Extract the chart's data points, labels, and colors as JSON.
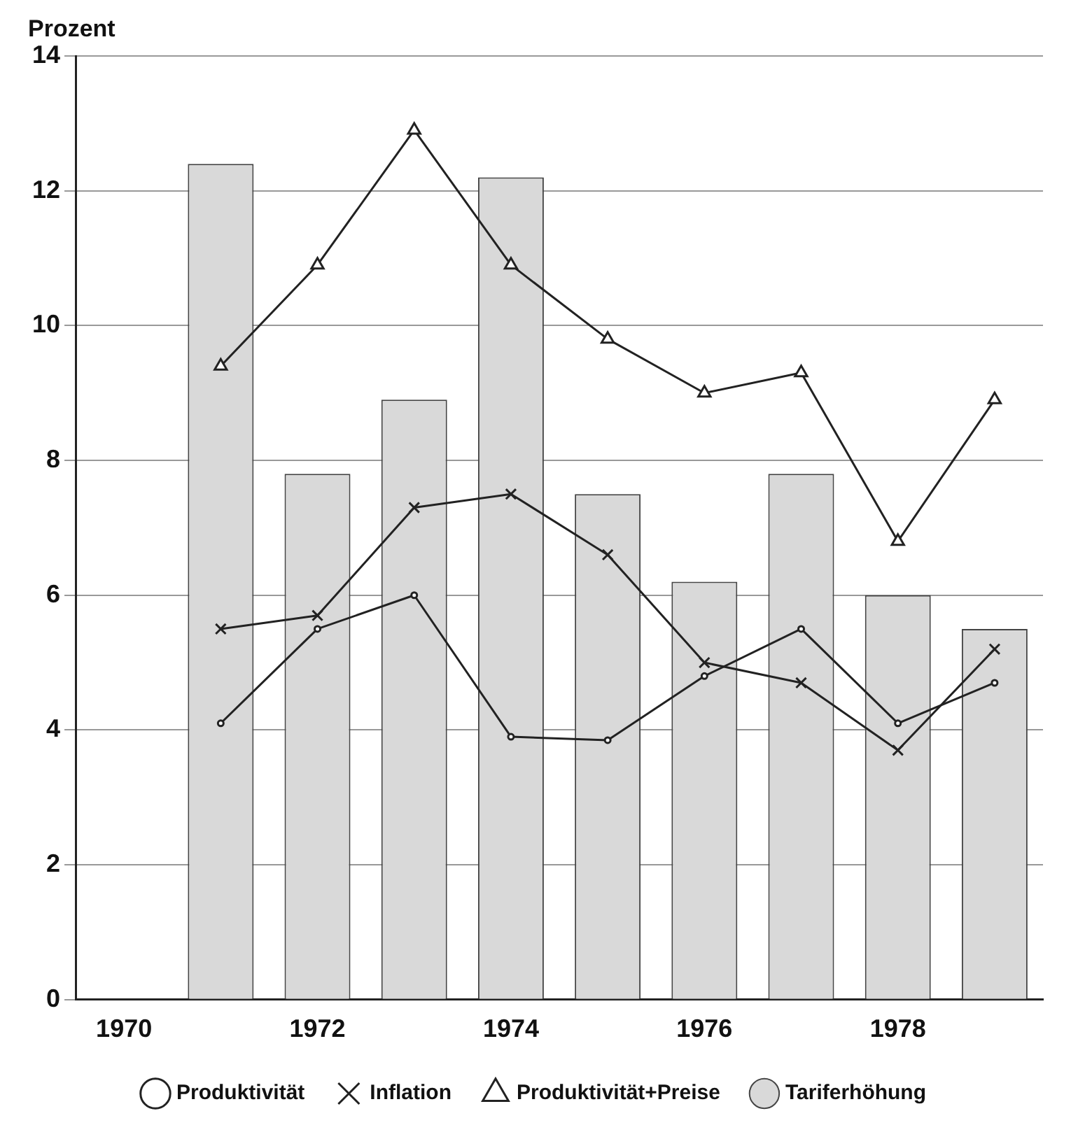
{
  "chart_data": {
    "type": "bar",
    "ylabel": "Prozent",
    "categories": [
      "1970",
      null,
      "1972",
      null,
      "1974",
      null,
      "1976",
      null,
      "1978",
      null
    ],
    "series": [
      {
        "name": "Tariferhöhung",
        "color": "#d9d9d9",
        "values": [
          null,
          12.4,
          7.8,
          8.9,
          12.2,
          7.5,
          6.2,
          7.8,
          6.0,
          5.5
        ]
      },
      {
        "name": "Produktivität",
        "type": "line",
        "color": "#222222",
        "marker": "circle",
        "values": [
          null,
          4.1,
          5.5,
          6.0,
          3.9,
          3.85,
          4.8,
          5.5,
          4.1,
          4.7
        ]
      },
      {
        "name": "Inflation",
        "type": "line",
        "color": "#222222",
        "marker": "cross",
        "values": [
          null,
          5.5,
          5.7,
          7.3,
          7.5,
          6.6,
          5.0,
          4.7,
          3.7,
          5.2
        ]
      },
      {
        "name": "Produktivität+Preise",
        "type": "line",
        "color": "#222222",
        "marker": "triangle",
        "values": [
          null,
          9.4,
          10.9,
          12.9,
          10.9,
          9.8,
          9.0,
          9.3,
          6.8,
          8.9
        ]
      }
    ],
    "ylim": [
      0,
      14
    ],
    "yticks": [
      0,
      2,
      4,
      6,
      8,
      10,
      12,
      14
    ],
    "grid": "y",
    "legend": "bottom"
  }
}
